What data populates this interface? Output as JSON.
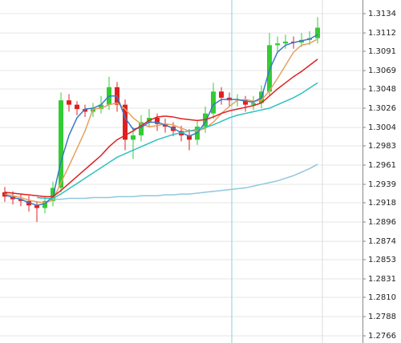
{
  "chart_data": {
    "type": "candlestick",
    "candles": {
      "open": [
        1.293,
        1.2925,
        1.2922,
        1.292,
        1.2915,
        1.2912,
        1.292,
        1.2935,
        1.3035,
        1.303,
        1.3025,
        1.3022,
        1.3025,
        1.303,
        1.305,
        1.303,
        1.299,
        1.2995,
        1.301,
        1.3015,
        1.3008,
        1.3005,
        1.3,
        1.2995,
        1.299,
        1.3005,
        1.302,
        1.3045,
        1.3038,
        1.3035,
        1.3036,
        1.303,
        1.3032,
        1.3045,
        1.3098,
        1.31,
        1.3102,
        1.3101,
        1.3104,
        1.3106
      ],
      "high": [
        1.2936,
        1.2931,
        1.2928,
        1.2926,
        1.292,
        1.2926,
        1.2942,
        1.3044,
        1.3042,
        1.3034,
        1.303,
        1.3032,
        1.304,
        1.3062,
        1.3056,
        1.3036,
        1.3004,
        1.3018,
        1.3025,
        1.302,
        1.3014,
        1.301,
        1.3006,
        1.3002,
        1.3012,
        1.3028,
        1.3055,
        1.305,
        1.3044,
        1.3042,
        1.304,
        1.304,
        1.3052,
        1.3112,
        1.3108,
        1.311,
        1.3108,
        1.3112,
        1.3114,
        1.313
      ],
      "low": [
        1.2919,
        1.2916,
        1.2914,
        1.2908,
        1.2896,
        1.2906,
        1.2914,
        1.293,
        1.3022,
        1.3018,
        1.3016,
        1.3016,
        1.302,
        1.3024,
        1.3022,
        1.2978,
        1.2968,
        1.2988,
        1.3004,
        1.3,
        1.2998,
        1.2994,
        1.2988,
        1.2978,
        1.2984,
        1.2998,
        1.3014,
        1.303,
        1.3028,
        1.3028,
        1.3022,
        1.3024,
        1.3026,
        1.304,
        1.309,
        1.3094,
        1.3094,
        1.3096,
        1.3098,
        1.31
      ],
      "close": [
        1.2925,
        1.2922,
        1.292,
        1.2915,
        1.2912,
        1.292,
        1.2935,
        1.3035,
        1.303,
        1.3025,
        1.3022,
        1.3025,
        1.303,
        1.305,
        1.303,
        1.299,
        1.2995,
        1.301,
        1.3015,
        1.3008,
        1.3005,
        1.3,
        1.2995,
        1.299,
        1.3005,
        1.302,
        1.3045,
        1.3038,
        1.3035,
        1.3036,
        1.303,
        1.3032,
        1.3045,
        1.3098,
        1.31,
        1.3102,
        1.3101,
        1.3104,
        1.3106,
        1.3118
      ]
    },
    "up_color": "#33cc33",
    "down_color": "#e02020",
    "series": [
      {
        "color": "#e8a060",
        "values": [
          1.2928,
          1.2926,
          1.2924,
          1.2921,
          1.2919,
          1.2918,
          1.2921,
          1.2941,
          1.296,
          1.298,
          1.3,
          1.3025,
          1.3026,
          1.303,
          1.3032,
          1.3025,
          1.3015,
          1.3008,
          1.3005,
          1.3006,
          1.3008,
          1.3007,
          1.3003,
          1.3,
          1.3,
          1.3003,
          1.301,
          1.302,
          1.3028,
          1.3035,
          1.3036,
          1.3034,
          1.3035,
          1.3046,
          1.306,
          1.3075,
          1.309,
          1.3098,
          1.31,
          1.3105
        ]
      },
      {
        "color": "#3a78c8",
        "values": [
          1.2927,
          1.2924,
          1.2922,
          1.2918,
          1.2915,
          1.2917,
          1.2925,
          1.2965,
          1.2995,
          1.3015,
          1.3025,
          1.3026,
          1.303,
          1.304,
          1.304,
          1.3015,
          1.3002,
          1.3004,
          1.301,
          1.301,
          1.3007,
          1.3003,
          1.2998,
          1.2994,
          1.2998,
          1.301,
          1.303,
          1.3036,
          1.3036,
          1.3036,
          1.3034,
          1.3033,
          1.3038,
          1.307,
          1.309,
          1.3098,
          1.3101,
          1.3103,
          1.3105,
          1.311
        ]
      },
      {
        "color": "#e02020",
        "values": [
          1.293,
          1.2929,
          1.2928,
          1.2927,
          1.2926,
          1.2925,
          1.2925,
          1.2932,
          1.294,
          1.2948,
          1.2956,
          1.2964,
          1.2972,
          1.2982,
          1.299,
          1.2995,
          1.3,
          1.3006,
          1.3012,
          1.3016,
          1.3017,
          1.3016,
          1.3014,
          1.3013,
          1.3012,
          1.3013,
          1.3016,
          1.302,
          1.3023,
          1.3025,
          1.3027,
          1.3029,
          1.3032,
          1.304,
          1.3048,
          1.3055,
          1.3062,
          1.3068,
          1.3075,
          1.3082
        ]
      },
      {
        "color": "#30c0c0",
        "values": [
          null,
          null,
          null,
          null,
          1.2924,
          1.2923,
          1.2923,
          1.2928,
          1.2934,
          1.294,
          1.2946,
          1.2952,
          1.2958,
          1.2964,
          1.297,
          1.2974,
          1.2978,
          1.2982,
          1.2986,
          1.299,
          1.2993,
          1.2996,
          1.2998,
          1.3,
          1.3002,
          1.3004,
          1.3007,
          1.3011,
          1.3015,
          1.3018,
          1.302,
          1.3022,
          1.3024,
          1.3026,
          1.303,
          1.3034,
          1.3038,
          1.3043,
          1.3049,
          1.3055
        ]
      },
      {
        "color": "#90c8dc",
        "values": [
          null,
          null,
          null,
          null,
          null,
          null,
          1.2922,
          1.2922,
          1.2923,
          1.2923,
          1.2923,
          1.2924,
          1.2924,
          1.2924,
          1.2925,
          1.2925,
          1.2925,
          1.2926,
          1.2926,
          1.2926,
          1.2927,
          1.2927,
          1.2928,
          1.2928,
          1.2929,
          1.293,
          1.2931,
          1.2932,
          1.2933,
          1.2934,
          1.2935,
          1.2937,
          1.2939,
          1.2941,
          1.2943,
          1.2946,
          1.2949,
          1.2953,
          1.2957,
          1.2962
        ]
      }
    ],
    "ylim": [
      1.27578,
      1.31496
    ],
    "yticks": [
      1.3134,
      1.3112,
      1.3091,
      1.3069,
      1.3048,
      1.3026,
      1.3004,
      1.2983,
      1.2961,
      1.2939,
      1.2918,
      1.2896,
      1.2874,
      1.2853,
      1.2831,
      {
        "value": 1.281,
        "label": "1.2810"
      },
      1.2788,
      1.2766
    ],
    "grid": true
  }
}
